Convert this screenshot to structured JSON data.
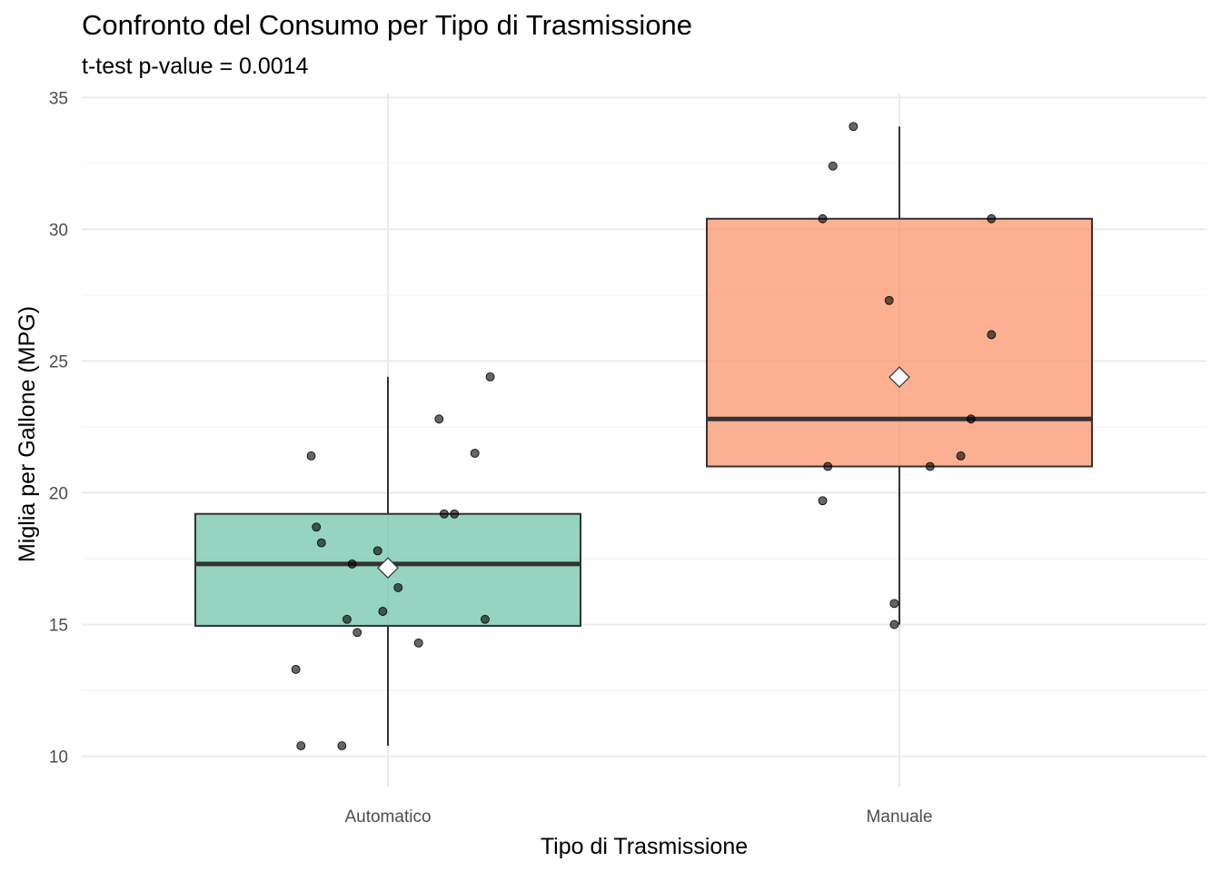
{
  "chart_data": {
    "type": "box",
    "title": "Confronto del Consumo per Tipo di Trasmissione",
    "subtitle": "t-test p-value = 0.0014",
    "xlabel": "Tipo di Trasmissione",
    "ylabel": "Miglia per Gallone (MPG)",
    "ylim": [
      10,
      35
    ],
    "yticks": [
      "10",
      "15",
      "20",
      "25",
      "30",
      "35"
    ],
    "categories": [
      "Automatico",
      "Manuale"
    ],
    "grid": true,
    "legend": "none",
    "series": [
      {
        "category": "Automatico",
        "color": "#66c2a5",
        "min": 10.4,
        "q1": 14.95,
        "median": 17.3,
        "q3": 19.2,
        "max": 24.4,
        "mean": 17.15,
        "points": [
          {
            "x": -0.15,
            "y": 21.4
          },
          {
            "x": -0.14,
            "y": 18.7
          },
          {
            "x": 0.1,
            "y": 22.8
          },
          {
            "x": 0.2,
            "y": 24.4
          },
          {
            "x": -0.13,
            "y": 18.1
          },
          {
            "x": 0.17,
            "y": 21.5
          },
          {
            "x": 0.11,
            "y": 19.2
          },
          {
            "x": 0.13,
            "y": 19.2
          },
          {
            "x": -0.02,
            "y": 17.8
          },
          {
            "x": -0.07,
            "y": 17.3
          },
          {
            "x": 0.02,
            "y": 16.4
          },
          {
            "x": -0.08,
            "y": 15.2
          },
          {
            "x": -0.01,
            "y": 15.5
          },
          {
            "x": 0.19,
            "y": 15.2
          },
          {
            "x": -0.06,
            "y": 14.7
          },
          {
            "x": 0.06,
            "y": 14.3
          },
          {
            "x": -0.18,
            "y": 13.3
          },
          {
            "x": -0.17,
            "y": 10.4
          },
          {
            "x": -0.09,
            "y": 10.4
          }
        ]
      },
      {
        "category": "Manuale",
        "color": "#fc8d62",
        "min": 15.0,
        "q1": 21.0,
        "median": 22.8,
        "q3": 30.4,
        "max": 33.9,
        "mean": 24.39,
        "points": [
          {
            "x": -0.09,
            "y": 33.9
          },
          {
            "x": -0.13,
            "y": 32.4
          },
          {
            "x": -0.15,
            "y": 30.4
          },
          {
            "x": 0.18,
            "y": 30.4
          },
          {
            "x": -0.02,
            "y": 27.3
          },
          {
            "x": 0.18,
            "y": 26.0
          },
          {
            "x": 0.14,
            "y": 22.8
          },
          {
            "x": 0.12,
            "y": 21.4
          },
          {
            "x": 0.06,
            "y": 21.0
          },
          {
            "x": -0.14,
            "y": 21.0
          },
          {
            "x": -0.15,
            "y": 19.7
          },
          {
            "x": -0.01,
            "y": 15.8
          },
          {
            "x": -0.01,
            "y": 15.0
          }
        ]
      }
    ]
  }
}
